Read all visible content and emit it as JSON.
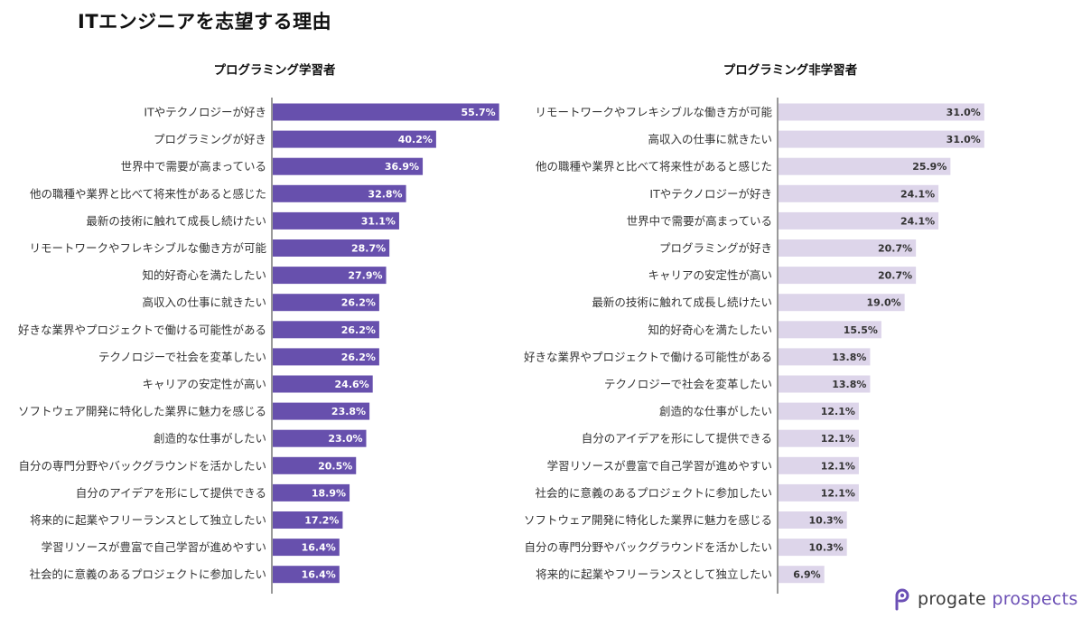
{
  "page": {
    "title": "ITエンジニアを志望する理由"
  },
  "logo": {
    "word1": "progate",
    "word2": "prospects"
  },
  "colors": {
    "learner_bar": "#6750ad",
    "learner_text": "#ffffff",
    "nonlearner_bar": "#ddd5ea",
    "nonlearner_text": "#333333"
  },
  "chart_data": [
    {
      "type": "bar",
      "orientation": "horizontal",
      "title": "プログラミング学習者",
      "categories": [
        "ITやテクノロジーが好き",
        "プログラミングが好き",
        "世界中で需要が高まっている",
        "他の職種や業界と比べて将来性があると感じた",
        "最新の技術に触れて成長し続けたい",
        "リモートワークやフレキシブルな働き方が可能",
        "知的好奇心を満たしたい",
        "高収入の仕事に就きたい",
        "好きな業界やプロジェクトで働ける可能性がある",
        "テクノロジーで社会を変革したい",
        "キャリアの安定性が高い",
        "ソフトウェア開発に特化した業界に魅力を感じる",
        "創造的な仕事がしたい",
        "自分の専門分野やバックグラウンドを活かしたい",
        "自分のアイデアを形にして提供できる",
        "将来的に起業やフリーランスとして独立したい",
        "学習リソースが豊富で自己学習が進めやすい",
        "社会的に意義のあるプロジェクトに参加したい"
      ],
      "values": [
        55.7,
        40.2,
        36.9,
        32.8,
        31.1,
        28.7,
        27.9,
        26.2,
        26.2,
        26.2,
        24.6,
        23.8,
        23.0,
        20.5,
        18.9,
        17.2,
        16.4,
        16.4
      ],
      "labels": [
        "55.7%",
        "40.2%",
        "36.9%",
        "32.8%",
        "31.1%",
        "28.7%",
        "27.9%",
        "26.2%",
        "26.2%",
        "26.2%",
        "24.6%",
        "23.8%",
        "23.0%",
        "20.5%",
        "18.9%",
        "17.2%",
        "16.4%",
        "16.4%"
      ],
      "unit": "%",
      "xlim": [
        0,
        100
      ]
    },
    {
      "type": "bar",
      "orientation": "horizontal",
      "title": "プログラミング非学習者",
      "categories": [
        "リモートワークやフレキシブルな働き方が可能",
        "高収入の仕事に就きたい",
        "他の職種や業界と比べて将来性があると感じた",
        "ITやテクノロジーが好き",
        "世界中で需要が高まっている",
        "プログラミングが好き",
        "キャリアの安定性が高い",
        "最新の技術に触れて成長し続けたい",
        "知的好奇心を満たしたい",
        "好きな業界やプロジェクトで働ける可能性がある",
        "テクノロジーで社会を変革したい",
        "創造的な仕事がしたい",
        "自分のアイデアを形にして提供できる",
        "学習リソースが豊富で自己学習が進めやすい",
        "社会的に意義のあるプロジェクトに参加したい",
        "ソフトウェア開発に特化した業界に魅力を感じる",
        "自分の専門分野やバックグラウンドを活かしたい",
        "将来的に起業やフリーランスとして独立したい"
      ],
      "values": [
        31.0,
        31.0,
        25.9,
        24.1,
        24.1,
        20.7,
        20.7,
        19.0,
        15.5,
        13.8,
        13.8,
        12.1,
        12.1,
        12.1,
        12.1,
        10.3,
        10.3,
        6.9
      ],
      "labels": [
        "31.0%",
        "31.0%",
        "25.9%",
        "24.1%",
        "24.1%",
        "20.7%",
        "20.7%",
        "19.0%",
        "15.5%",
        "13.8%",
        "13.8%",
        "12.1%",
        "12.1%",
        "12.1%",
        "12.1%",
        "10.3%",
        "10.3%",
        "6.9%"
      ],
      "unit": "%",
      "xlim": [
        0,
        100
      ]
    }
  ]
}
